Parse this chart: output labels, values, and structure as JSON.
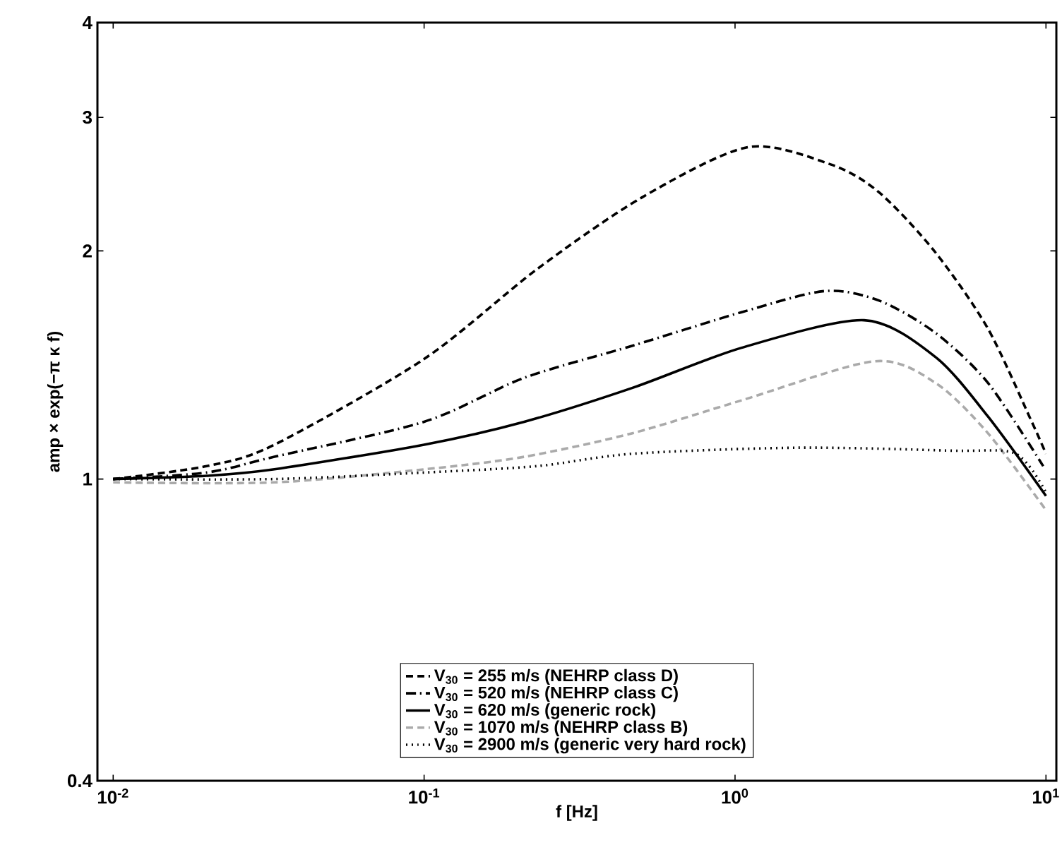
{
  "chart_data": {
    "type": "line",
    "xlabel": "f [Hz]",
    "ylabel": "amp × exp(−π κ f)",
    "log": "xy",
    "legend": "bottom",
    "xlim": [
      0.0089,
      10.8
    ],
    "ylim": [
      0.4,
      4
    ],
    "xticks": [
      {
        "value": 0.01,
        "label": "10$^{-2}$"
      },
      {
        "value": 0.1,
        "label": "10$^{-1}$"
      },
      {
        "value": 1,
        "label": "10$^{0}$"
      },
      {
        "value": 10,
        "label": "10$^{1}$"
      }
    ],
    "yticks": [
      0.4,
      1,
      2,
      3,
      4
    ],
    "series": [
      {
        "name": "V$_{30}$ =  255 m/s (NEHRP class D)",
        "color": "#000000",
        "line_style": "dashed",
        "x": [
          0.01,
          0.02,
          0.033,
          0.1,
          0.23,
          0.5,
          1.1,
          2.03,
          2.9,
          4.37,
          6.5,
          9.0,
          10
        ],
        "values": [
          1.0,
          1.04,
          1.11,
          1.44,
          1.89,
          2.35,
          2.74,
          2.6,
          2.39,
          2.0,
          1.58,
          1.19,
          1.08
        ]
      },
      {
        "name": "V$_{30}$ =  520 m/s (NEHRP class C)",
        "color": "#000000",
        "line_style": "dashdot",
        "x": [
          0.01,
          0.02,
          0.033,
          0.1,
          0.21,
          0.47,
          1.05,
          1.94,
          2.9,
          4.4,
          6.5,
          9.8
        ],
        "values": [
          1.0,
          1.02,
          1.07,
          1.19,
          1.36,
          1.5,
          1.66,
          1.77,
          1.72,
          1.56,
          1.34,
          1.04
        ]
      },
      {
        "name": "V$_{30}$ =  620 m/s (generic rock)",
        "color": "#000000",
        "line_style": "solid",
        "x": [
          0.01,
          0.02,
          0.033,
          0.1,
          0.21,
          0.47,
          1.05,
          2.6,
          4.4,
          6.5,
          10
        ],
        "values": [
          1.0,
          1.01,
          1.03,
          1.11,
          1.19,
          1.32,
          1.49,
          1.62,
          1.45,
          1.21,
          0.95
        ]
      },
      {
        "name": "V$_{30}$ = 1070 m/s (NEHRP class B)",
        "color": "#aaaaaa",
        "line_style": "dashed",
        "x": [
          0.01,
          0.033,
          0.1,
          0.21,
          0.47,
          1.05,
          2.8,
          4.4,
          6.5,
          10
        ],
        "values": [
          0.99,
          0.99,
          1.03,
          1.07,
          1.15,
          1.27,
          1.43,
          1.34,
          1.15,
          0.91
        ]
      },
      {
        "name": "V$_{30}$ = 2900 m/s (generic very hard rock)",
        "color": "#000000",
        "line_style": "dotted",
        "x": [
          0.01,
          0.033,
          0.1,
          0.23,
          0.47,
          1.6,
          5.0,
          8.0,
          10
        ],
        "values": [
          1.0,
          1.0,
          1.02,
          1.04,
          1.08,
          1.1,
          1.09,
          1.08,
          0.96
        ]
      }
    ]
  }
}
